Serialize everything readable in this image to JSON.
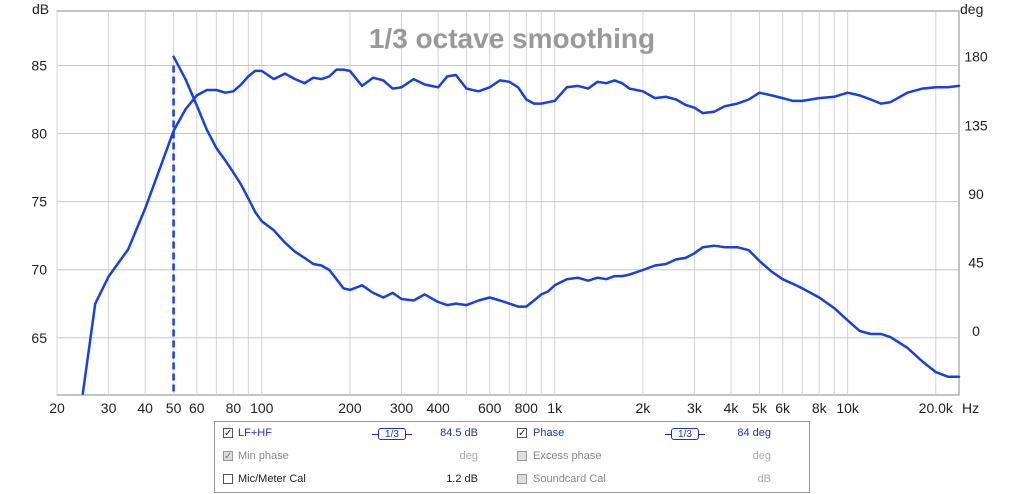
{
  "chart_data": {
    "type": "line",
    "title": "1/3 octave smoothing",
    "x_scale": "log",
    "xlim": [
      20,
      24000
    ],
    "ylabel_left": "dB",
    "ylabel_right": "deg",
    "xunit": "Hz",
    "ylim_left": [
      60.8,
      89
    ],
    "ylim_right": [
      -42,
      210
    ],
    "x_ticks": [
      {
        "v": 20,
        "label": "20"
      },
      {
        "v": 30,
        "label": "30"
      },
      {
        "v": 40,
        "label": "40"
      },
      {
        "v": 50,
        "label": "50"
      },
      {
        "v": 60,
        "label": "60"
      },
      {
        "v": 80,
        "label": "80"
      },
      {
        "v": 100,
        "label": "100"
      },
      {
        "v": 200,
        "label": "200"
      },
      {
        "v": 300,
        "label": "300"
      },
      {
        "v": 400,
        "label": "400"
      },
      {
        "v": 600,
        "label": "600"
      },
      {
        "v": 800,
        "label": "800"
      },
      {
        "v": 1000,
        "label": "1k"
      },
      {
        "v": 2000,
        "label": "2k"
      },
      {
        "v": 3000,
        "label": "3k"
      },
      {
        "v": 4000,
        "label": "4k"
      },
      {
        "v": 5000,
        "label": "5k"
      },
      {
        "v": 6000,
        "label": "6k"
      },
      {
        "v": 8000,
        "label": "8k"
      },
      {
        "v": 10000,
        "label": "10k"
      },
      {
        "v": 20000,
        "label": "20.0k"
      }
    ],
    "y_ticks_left": [
      65,
      70,
      75,
      80,
      85
    ],
    "y_ticks_right": [
      0,
      45,
      90,
      135,
      180
    ],
    "grid": true,
    "marker": {
      "x": 50,
      "y_top": 85
    },
    "series": [
      {
        "name": "LF+HF",
        "axis": "left",
        "color": "#1a3fe0",
        "x": [
          24.5,
          27,
          30,
          35,
          40,
          45,
          50,
          55,
          60,
          65,
          70,
          75,
          80,
          85,
          90,
          95,
          100,
          110,
          120,
          130,
          140,
          150,
          160,
          170,
          180,
          190,
          200,
          220,
          240,
          260,
          280,
          300,
          330,
          360,
          400,
          430,
          460,
          500,
          550,
          600,
          650,
          700,
          750,
          800,
          850,
          900,
          950,
          1000,
          1100,
          1200,
          1300,
          1400,
          1500,
          1600,
          1700,
          1800,
          2000,
          2200,
          2400,
          2600,
          2800,
          3000,
          3200,
          3500,
          3800,
          4200,
          4600,
          5000,
          5500,
          6000,
          6500,
          7000,
          8000,
          9000,
          10000,
          11000,
          12000,
          13000,
          14000,
          16000,
          18000,
          20000,
          22000,
          24000
        ],
        "y": [
          60.9,
          67.5,
          69.5,
          71.5,
          74.5,
          77.5,
          80.2,
          81.8,
          82.8,
          83.2,
          83.2,
          83.0,
          83.1,
          83.6,
          84.2,
          84.6,
          84.6,
          84.0,
          84.4,
          84.0,
          83.7,
          84.1,
          84.0,
          84.2,
          84.7,
          84.7,
          84.6,
          83.5,
          84.1,
          83.9,
          83.3,
          83.4,
          84.0,
          83.6,
          83.4,
          84.2,
          84.3,
          83.3,
          83.1,
          83.4,
          83.9,
          83.8,
          83.4,
          82.5,
          82.2,
          82.2,
          82.3,
          82.4,
          83.4,
          83.5,
          83.3,
          83.8,
          83.7,
          83.9,
          83.7,
          83.3,
          83.1,
          82.6,
          82.7,
          82.5,
          82.1,
          81.9,
          81.5,
          81.6,
          82.0,
          82.2,
          82.5,
          83.0,
          82.8,
          82.6,
          82.4,
          82.4,
          82.6,
          82.7,
          83.0,
          82.8,
          82.5,
          82.2,
          82.3,
          83.0,
          83.3,
          83.4,
          83.4,
          83.5
        ]
      },
      {
        "name": "Phase",
        "axis": "right",
        "color": "#1a3fe0",
        "x": [
          50,
          55,
          60,
          65,
          70,
          75,
          80,
          85,
          90,
          95,
          100,
          110,
          120,
          130,
          140,
          150,
          160,
          170,
          180,
          190,
          200,
          220,
          240,
          260,
          280,
          300,
          330,
          360,
          400,
          430,
          460,
          500,
          550,
          600,
          650,
          700,
          750,
          800,
          850,
          900,
          950,
          1000,
          1100,
          1200,
          1300,
          1400,
          1500,
          1600,
          1700,
          1800,
          2000,
          2200,
          2400,
          2600,
          2800,
          3000,
          3200,
          3500,
          3800,
          4200,
          4600,
          5000,
          5500,
          6000,
          6500,
          7000,
          8000,
          9000,
          10000,
          11000,
          12000,
          13000,
          14000,
          16000,
          18000,
          20000,
          22000,
          24000
        ],
        "y": [
          180,
          165,
          148,
          132,
          120,
          112,
          104,
          96,
          87,
          78,
          72,
          66,
          58,
          52,
          48,
          44,
          43,
          40,
          34,
          28,
          27,
          30,
          25,
          22,
          25,
          21,
          20,
          24,
          19,
          17,
          18,
          17,
          20,
          22,
          20,
          18,
          16,
          16,
          20,
          24,
          26,
          30,
          34,
          35,
          33,
          35,
          34,
          36,
          36,
          37,
          40,
          43,
          44,
          47,
          48,
          51,
          55,
          56,
          55,
          55,
          53,
          46,
          39,
          34,
          31,
          28,
          22,
          15,
          7,
          0,
          -2,
          -2,
          -4,
          -11,
          -20,
          -27,
          -30,
          -30
        ]
      }
    ]
  },
  "legend": {
    "row1": {
      "name": "LF+HF",
      "checked": "✓",
      "smooth": "1/3",
      "value": "84.5 dB",
      "name2": "Phase",
      "checked2": "✓",
      "smooth2": "1/3",
      "value2": "84 deg"
    },
    "row2": {
      "name": "Min phase",
      "checked": "✓",
      "value": "deg",
      "name2": "Excess phase",
      "checked2": "",
      "value2": "deg"
    },
    "row3": {
      "name": "Mic/Meter Cal",
      "checked": "",
      "value": "1.2 dB",
      "name2": "Soundcard Cal",
      "checked2": "",
      "value2": "dB"
    }
  }
}
